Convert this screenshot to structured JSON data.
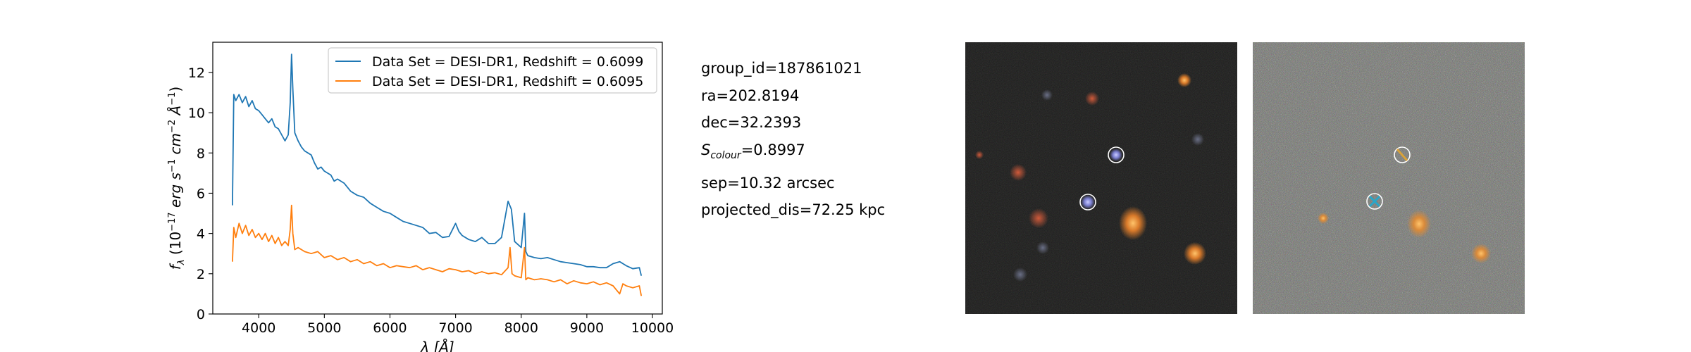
{
  "chart_data": {
    "type": "line",
    "xlabel": "λ [Å]",
    "ylabel": "f_λ (10^{-17} erg s^{-1} cm^{-2} Å^{-1})",
    "xlim": [
      3300,
      10150
    ],
    "ylim": [
      0,
      13.5
    ],
    "xticks": [
      4000,
      5000,
      6000,
      7000,
      8000,
      9000,
      10000
    ],
    "yticks": [
      0,
      2,
      4,
      6,
      8,
      10,
      12
    ],
    "grid": false,
    "legend_position": "top-right",
    "series": [
      {
        "name": "Data Set = DESI-DR1, Redshift = 0.6099",
        "color": "#1f77b4",
        "points": [
          [
            3600,
            5.4
          ],
          [
            3620,
            10.9
          ],
          [
            3650,
            10.6
          ],
          [
            3700,
            10.9
          ],
          [
            3750,
            10.5
          ],
          [
            3800,
            10.8
          ],
          [
            3850,
            10.3
          ],
          [
            3900,
            10.6
          ],
          [
            3950,
            10.2
          ],
          [
            4000,
            10.1
          ],
          [
            4050,
            9.9
          ],
          [
            4100,
            9.7
          ],
          [
            4150,
            9.5
          ],
          [
            4200,
            9.7
          ],
          [
            4250,
            9.3
          ],
          [
            4300,
            9.2
          ],
          [
            4350,
            8.9
          ],
          [
            4400,
            8.6
          ],
          [
            4450,
            8.9
          ],
          [
            4480,
            10.5
          ],
          [
            4500,
            12.9
          ],
          [
            4520,
            11.2
          ],
          [
            4550,
            9.0
          ],
          [
            4600,
            8.6
          ],
          [
            4650,
            8.3
          ],
          [
            4700,
            8.1
          ],
          [
            4750,
            8.0
          ],
          [
            4800,
            7.9
          ],
          [
            4850,
            7.5
          ],
          [
            4900,
            7.2
          ],
          [
            4950,
            7.3
          ],
          [
            5000,
            7.1
          ],
          [
            5050,
            7.0
          ],
          [
            5100,
            6.9
          ],
          [
            5150,
            6.6
          ],
          [
            5200,
            6.7
          ],
          [
            5300,
            6.5
          ],
          [
            5400,
            6.1
          ],
          [
            5500,
            5.9
          ],
          [
            5600,
            5.8
          ],
          [
            5700,
            5.5
          ],
          [
            5800,
            5.3
          ],
          [
            5900,
            5.1
          ],
          [
            6000,
            5.0
          ],
          [
            6100,
            4.8
          ],
          [
            6200,
            4.6
          ],
          [
            6300,
            4.5
          ],
          [
            6400,
            4.4
          ],
          [
            6500,
            4.3
          ],
          [
            6600,
            4.0
          ],
          [
            6700,
            4.05
          ],
          [
            6800,
            3.8
          ],
          [
            6900,
            3.85
          ],
          [
            7000,
            4.5
          ],
          [
            7050,
            4.1
          ],
          [
            7100,
            3.9
          ],
          [
            7200,
            3.7
          ],
          [
            7300,
            3.6
          ],
          [
            7400,
            3.8
          ],
          [
            7500,
            3.5
          ],
          [
            7600,
            3.5
          ],
          [
            7700,
            3.8
          ],
          [
            7800,
            5.6
          ],
          [
            7850,
            5.2
          ],
          [
            7900,
            3.6
          ],
          [
            8000,
            3.3
          ],
          [
            8050,
            5.0
          ],
          [
            8070,
            3.1
          ],
          [
            8100,
            2.9
          ],
          [
            8200,
            2.8
          ],
          [
            8300,
            2.75
          ],
          [
            8400,
            2.8
          ],
          [
            8500,
            2.7
          ],
          [
            8600,
            2.6
          ],
          [
            8700,
            2.55
          ],
          [
            8800,
            2.5
          ],
          [
            8900,
            2.45
          ],
          [
            9000,
            2.35
          ],
          [
            9100,
            2.35
          ],
          [
            9200,
            2.3
          ],
          [
            9300,
            2.3
          ],
          [
            9400,
            2.5
          ],
          [
            9500,
            2.6
          ],
          [
            9600,
            2.4
          ],
          [
            9700,
            2.25
          ],
          [
            9800,
            2.3
          ],
          [
            9830,
            1.9
          ]
        ]
      },
      {
        "name": "Data Set = DESI-DR1, Redshift = 0.6095",
        "color": "#ff7f0e",
        "points": [
          [
            3600,
            2.6
          ],
          [
            3620,
            4.3
          ],
          [
            3650,
            3.8
          ],
          [
            3700,
            4.5
          ],
          [
            3750,
            4.0
          ],
          [
            3800,
            4.4
          ],
          [
            3850,
            3.9
          ],
          [
            3900,
            4.2
          ],
          [
            3950,
            3.8
          ],
          [
            4000,
            4.0
          ],
          [
            4050,
            3.7
          ],
          [
            4100,
            4.0
          ],
          [
            4150,
            3.6
          ],
          [
            4200,
            3.9
          ],
          [
            4250,
            3.5
          ],
          [
            4300,
            3.8
          ],
          [
            4350,
            3.4
          ],
          [
            4400,
            3.6
          ],
          [
            4450,
            3.4
          ],
          [
            4480,
            4.2
          ],
          [
            4500,
            5.4
          ],
          [
            4520,
            4.0
          ],
          [
            4550,
            3.2
          ],
          [
            4600,
            3.3
          ],
          [
            4700,
            3.1
          ],
          [
            4800,
            3.0
          ],
          [
            4900,
            3.1
          ],
          [
            5000,
            2.8
          ],
          [
            5100,
            2.9
          ],
          [
            5200,
            2.7
          ],
          [
            5300,
            2.8
          ],
          [
            5400,
            2.6
          ],
          [
            5500,
            2.7
          ],
          [
            5600,
            2.5
          ],
          [
            5700,
            2.6
          ],
          [
            5800,
            2.4
          ],
          [
            5900,
            2.5
          ],
          [
            6000,
            2.3
          ],
          [
            6100,
            2.4
          ],
          [
            6200,
            2.35
          ],
          [
            6300,
            2.3
          ],
          [
            6400,
            2.4
          ],
          [
            6500,
            2.2
          ],
          [
            6600,
            2.3
          ],
          [
            6700,
            2.2
          ],
          [
            6800,
            2.1
          ],
          [
            6900,
            2.25
          ],
          [
            7000,
            2.2
          ],
          [
            7100,
            2.1
          ],
          [
            7200,
            2.15
          ],
          [
            7300,
            2.0
          ],
          [
            7400,
            2.1
          ],
          [
            7500,
            2.0
          ],
          [
            7600,
            2.05
          ],
          [
            7700,
            1.95
          ],
          [
            7800,
            2.3
          ],
          [
            7830,
            3.3
          ],
          [
            7860,
            2.0
          ],
          [
            7900,
            1.9
          ],
          [
            8000,
            1.8
          ],
          [
            8050,
            3.3
          ],
          [
            8070,
            1.7
          ],
          [
            8100,
            1.8
          ],
          [
            8200,
            1.7
          ],
          [
            8300,
            1.75
          ],
          [
            8400,
            1.7
          ],
          [
            8500,
            1.6
          ],
          [
            8600,
            1.7
          ],
          [
            8700,
            1.5
          ],
          [
            8800,
            1.65
          ],
          [
            8900,
            1.55
          ],
          [
            9000,
            1.5
          ],
          [
            9100,
            1.6
          ],
          [
            9200,
            1.45
          ],
          [
            9300,
            1.55
          ],
          [
            9400,
            1.4
          ],
          [
            9500,
            1.0
          ],
          [
            9550,
            1.5
          ],
          [
            9600,
            1.4
          ],
          [
            9700,
            1.3
          ],
          [
            9800,
            1.4
          ],
          [
            9830,
            0.9
          ]
        ]
      }
    ]
  },
  "info": {
    "group_id": "group_id=187861021",
    "ra": "ra=202.8194",
    "dec": "dec=32.2393",
    "s_colour_symbol": "S",
    "s_colour_sub": "colour",
    "s_colour_value": "=0.8997",
    "sep": "sep=10.32 arcsec",
    "projected_dis": "projected_dis=72.25 kpc"
  },
  "colors": {
    "left_image_bg": "#1a1a19",
    "right_image_bg": "#6b6e66",
    "marker_ring": "#ffffff",
    "cross_marker": "#2aa6c8"
  }
}
